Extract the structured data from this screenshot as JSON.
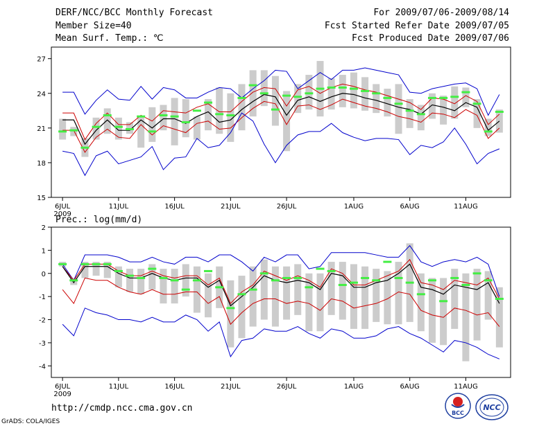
{
  "header": {
    "title": "DERF/NCC/BCC Monthly Forecast",
    "member_size": "Member Size=40",
    "variable": "Mean Surf. Temp.: ℃",
    "forecast_period": "For 2009/07/06-2009/08/14",
    "started_refer_date": "Fcst Started Refer Date 2009/07/05",
    "produced_date": "Fcst Produced Date 2009/07/06"
  },
  "footer": {
    "url": "http://cmdp.ncc.cma.gov.cn",
    "grads": "GrADS: COLA/IGES",
    "logo_bcc": "BCC",
    "logo_ncc": "NCC"
  },
  "colors": {
    "envelope": "#0000cc",
    "spread": "#cc0000",
    "mean": "#000000",
    "box": "#cccccc",
    "median": "#44ee44"
  },
  "chart_data": [
    {
      "type": "line",
      "title": "Mean Surf. Temp.: ℃",
      "x_tick_labels": [
        "6JUL",
        "11JUL",
        "16JUL",
        "21JUL",
        "26JUL",
        "1AUG",
        "6AUG",
        "11AUG"
      ],
      "x_tick_days": [
        1,
        6,
        11,
        16,
        21,
        27,
        32,
        37
      ],
      "x_year_label": "2009",
      "x_range": [
        0,
        41
      ],
      "ylim": [
        15,
        28
      ],
      "y_ticks": [
        15,
        18,
        21,
        24,
        27
      ],
      "days": [
        1,
        2,
        3,
        4,
        5,
        6,
        7,
        8,
        9,
        10,
        11,
        12,
        13,
        14,
        15,
        16,
        17,
        18,
        19,
        20,
        21,
        22,
        23,
        24,
        25,
        26,
        27,
        28,
        29,
        30,
        31,
        32,
        33,
        34,
        35,
        36,
        37,
        38,
        39,
        40
      ],
      "series": [
        {
          "name": "max",
          "values": [
            24.1,
            24.1,
            22.2,
            23.4,
            24.3,
            23.5,
            23.4,
            24.6,
            23.5,
            24.5,
            24.3,
            23.6,
            23.6,
            24.1,
            24.5,
            24.4,
            23.6,
            24.4,
            25.1,
            26.0,
            25.9,
            24.4,
            25.1,
            25.8,
            25.2,
            26.0,
            26.0,
            26.2,
            26.0,
            25.8,
            25.6,
            24.1,
            24.0,
            24.4,
            24.6,
            24.8,
            24.9,
            24.4,
            22.1,
            23.9
          ]
        },
        {
          "name": "p_high",
          "values": [
            22.3,
            22.3,
            20.0,
            21.4,
            22.3,
            21.3,
            21.3,
            22.1,
            21.6,
            22.5,
            22.4,
            22.3,
            22.8,
            23.1,
            22.4,
            22.4,
            23.3,
            24.1,
            24.5,
            24.4,
            22.9,
            24.3,
            24.6,
            24.0,
            24.5,
            24.8,
            24.6,
            24.3,
            24.1,
            23.8,
            23.5,
            23.2,
            22.6,
            23.6,
            23.5,
            23.1,
            23.8,
            23.3,
            21.3,
            22.2
          ]
        },
        {
          "name": "mean",
          "values": [
            21.7,
            21.7,
            19.6,
            20.8,
            21.7,
            20.8,
            20.8,
            21.7,
            21.0,
            21.8,
            21.8,
            21.4,
            22.0,
            22.4,
            21.5,
            21.7,
            22.6,
            23.3,
            23.9,
            23.7,
            22.1,
            23.4,
            23.7,
            23.3,
            23.7,
            24.0,
            23.9,
            23.6,
            23.4,
            23.1,
            22.8,
            22.6,
            22.2,
            23.0,
            22.8,
            22.5,
            23.2,
            22.8,
            20.8,
            21.6
          ]
        },
        {
          "name": "p_low",
          "values": [
            20.8,
            20.8,
            18.9,
            20.2,
            20.9,
            20.2,
            20.1,
            21.3,
            20.4,
            21.2,
            20.9,
            20.6,
            21.4,
            21.6,
            20.9,
            21.0,
            21.9,
            22.7,
            23.3,
            23.1,
            21.3,
            22.9,
            23.0,
            22.6,
            23.0,
            23.5,
            23.2,
            22.9,
            22.7,
            22.4,
            22.0,
            21.8,
            21.5,
            22.3,
            22.2,
            21.9,
            22.6,
            22.1,
            20.1,
            21.0
          ]
        },
        {
          "name": "min",
          "values": [
            19.0,
            18.8,
            16.9,
            18.6,
            19.0,
            17.9,
            18.2,
            18.5,
            19.4,
            17.4,
            18.4,
            18.5,
            20.1,
            19.3,
            19.5,
            20.6,
            22.3,
            21.6,
            19.6,
            18.0,
            19.5,
            20.4,
            20.7,
            20.7,
            21.4,
            20.6,
            20.2,
            19.9,
            20.1,
            20.1,
            20.0,
            18.7,
            19.5,
            19.3,
            19.8,
            21.0,
            19.6,
            17.9,
            18.8,
            19.2
          ]
        }
      ],
      "box_low": [
        20.0,
        20.3,
        18.5,
        20.0,
        20.5,
        20.0,
        20.5,
        19.3,
        19.8,
        20.8,
        19.5,
        20.2,
        20.0,
        20.8,
        20.5,
        19.8,
        20.8,
        22.0,
        22.9,
        21.2,
        19.0,
        22.3,
        22.6,
        22.0,
        22.6,
        22.8,
        22.7,
        22.5,
        22.3,
        22.0,
        20.5,
        21.0,
        20.8,
        21.8,
        21.3,
        21.8,
        22.8,
        21.0,
        20.3,
        20.6
      ],
      "box_high": [
        21.8,
        21.1,
        20.1,
        21.9,
        22.7,
        21.9,
        21.5,
        22.0,
        22.8,
        23.0,
        23.6,
        23.5,
        22.0,
        23.5,
        24.5,
        24.0,
        24.8,
        26.0,
        26.0,
        25.5,
        24.2,
        24.8,
        25.6,
        26.8,
        25.3,
        25.6,
        25.8,
        25.4,
        24.8,
        24.4,
        24.8,
        23.5,
        23.0,
        24.0,
        23.8,
        24.6,
        24.5,
        23.5,
        21.8,
        22.6
      ],
      "median": [
        20.7,
        20.8,
        19.3,
        21.1,
        22.1,
        21.1,
        20.9,
        22.0,
        20.7,
        22.1,
        22.0,
        21.5,
        22.5,
        23.2,
        22.2,
        22.1,
        23.6,
        24.7,
        24.0,
        22.6,
        23.8,
        23.7,
        24.0,
        24.4,
        24.5,
        24.5,
        24.4,
        24.2,
        24.0,
        23.6,
        23.1,
        22.5,
        22.2,
        23.6,
        23.6,
        23.7,
        24.1,
        23.1,
        20.7,
        22.4
      ]
    },
    {
      "type": "line",
      "title": "Prec.: log(mm/d)",
      "x_tick_labels": [
        "6JUL",
        "11JUL",
        "16JUL",
        "21JUL",
        "26JUL",
        "1AUG",
        "6AUG",
        "11AUG"
      ],
      "x_tick_days": [
        1,
        6,
        11,
        16,
        21,
        27,
        32,
        37
      ],
      "x_year_label": "2009",
      "x_range": [
        0,
        41
      ],
      "ylim": [
        -4.5,
        2
      ],
      "y_ticks": [
        2,
        1,
        0,
        -1,
        -2,
        -3,
        -4
      ],
      "days": [
        1,
        2,
        3,
        4,
        5,
        6,
        7,
        8,
        9,
        10,
        11,
        12,
        13,
        14,
        15,
        16,
        17,
        18,
        19,
        20,
        21,
        22,
        23,
        24,
        25,
        26,
        27,
        28,
        29,
        30,
        31,
        32,
        33,
        34,
        35,
        36,
        37,
        38,
        39,
        40
      ],
      "series": [
        {
          "name": "max",
          "values": [
            0.4,
            -0.3,
            0.8,
            0.8,
            0.8,
            0.7,
            0.5,
            0.5,
            0.7,
            0.5,
            0.4,
            0.7,
            0.7,
            0.5,
            0.8,
            0.8,
            0.5,
            0.1,
            0.7,
            0.5,
            0.8,
            0.8,
            0.2,
            0.3,
            0.9,
            0.9,
            0.9,
            0.9,
            0.8,
            0.7,
            0.7,
            1.2,
            0.5,
            0.3,
            0.5,
            0.6,
            0.5,
            0.7,
            0.4,
            -1.0
          ]
        },
        {
          "name": "p_high",
          "values": [
            0.3,
            -0.3,
            0.4,
            0.4,
            0.4,
            0.1,
            -0.1,
            -0.1,
            0.1,
            -0.1,
            -0.2,
            -0.1,
            -0.1,
            -0.5,
            -0.2,
            -1.3,
            -0.8,
            -0.5,
            0.1,
            -0.1,
            -0.3,
            -0.1,
            -0.3,
            -0.6,
            0.2,
            0.0,
            -0.5,
            -0.5,
            -0.3,
            -0.1,
            0.1,
            0.6,
            -0.4,
            -0.5,
            -0.7,
            -0.3,
            -0.4,
            -0.5,
            -0.2,
            -1.1
          ]
        },
        {
          "name": "mean",
          "values": [
            0.3,
            -0.4,
            0.3,
            0.3,
            0.3,
            0.0,
            -0.2,
            -0.2,
            0.0,
            -0.2,
            -0.3,
            -0.2,
            -0.2,
            -0.6,
            -0.3,
            -1.4,
            -1.0,
            -0.6,
            -0.1,
            -0.3,
            -0.4,
            -0.3,
            -0.4,
            -0.7,
            0.0,
            -0.1,
            -0.6,
            -0.6,
            -0.4,
            -0.3,
            0.0,
            0.4,
            -0.6,
            -0.7,
            -0.9,
            -0.5,
            -0.6,
            -0.7,
            -0.4,
            -1.3
          ]
        },
        {
          "name": "p_low",
          "values": [
            -0.7,
            -1.3,
            -0.2,
            -0.3,
            -0.3,
            -0.6,
            -0.8,
            -0.9,
            -0.7,
            -0.9,
            -0.9,
            -0.8,
            -0.8,
            -1.3,
            -1.0,
            -2.2,
            -1.7,
            -1.3,
            -1.1,
            -1.1,
            -1.3,
            -1.2,
            -1.3,
            -1.6,
            -1.1,
            -1.2,
            -1.5,
            -1.4,
            -1.3,
            -1.1,
            -0.8,
            -0.9,
            -1.6,
            -1.8,
            -1.9,
            -1.5,
            -1.6,
            -1.8,
            -1.7,
            -2.3
          ]
        },
        {
          "name": "min",
          "values": [
            -2.2,
            -2.7,
            -1.5,
            -1.7,
            -1.8,
            -2.0,
            -2.0,
            -2.1,
            -1.9,
            -2.1,
            -2.1,
            -1.8,
            -2.0,
            -2.5,
            -2.1,
            -3.6,
            -2.9,
            -2.8,
            -2.4,
            -2.5,
            -2.5,
            -2.3,
            -2.6,
            -2.8,
            -2.4,
            -2.5,
            -2.8,
            -2.8,
            -2.7,
            -2.4,
            -2.3,
            -2.6,
            -2.8,
            -3.1,
            -3.4,
            -2.9,
            -3.0,
            -3.2,
            -3.5,
            -3.7
          ]
        }
      ],
      "box_low": [
        0.3,
        -0.5,
        -0.2,
        -0.1,
        -0.2,
        -0.6,
        -0.8,
        -0.9,
        -0.7,
        -1.3,
        -1.3,
        -1.0,
        -1.7,
        -1.9,
        -1.5,
        -3.2,
        -2.8,
        -2.3,
        -2.0,
        -2.3,
        -2.0,
        -1.8,
        -2.5,
        -2.5,
        -1.8,
        -2.0,
        -2.4,
        -2.4,
        -2.1,
        -2.2,
        -2.2,
        -2.1,
        -2.5,
        -3.0,
        -3.1,
        -2.4,
        -3.8,
        -2.9,
        -2.0,
        -3.2
      ],
      "box_high": [
        0.5,
        -0.2,
        0.5,
        0.5,
        0.5,
        0.3,
        0.2,
        0.2,
        0.4,
        0.2,
        0.2,
        0.4,
        0.3,
        0.0,
        0.3,
        -0.3,
        -0.1,
        0.3,
        0.6,
        0.3,
        0.3,
        0.4,
        0.0,
        0.0,
        0.5,
        0.5,
        0.4,
        0.3,
        0.2,
        0.1,
        0.5,
        1.3,
        0.0,
        -0.2,
        -0.2,
        0.2,
        0.0,
        0.2,
        0.1,
        -0.6
      ],
      "median": [
        0.4,
        -0.3,
        0.4,
        0.4,
        0.4,
        0.1,
        -0.1,
        -0.2,
        0.2,
        -0.2,
        -0.3,
        -0.7,
        -0.3,
        0.1,
        -0.6,
        -1.5,
        -0.9,
        -0.7,
        0.0,
        -0.3,
        -0.2,
        -0.2,
        -0.6,
        0.2,
        0.1,
        -0.5,
        -0.4,
        -0.2,
        -0.3,
        0.5,
        -0.2,
        -0.4,
        -0.9,
        -0.3,
        -1.2,
        -0.2,
        -0.5,
        0.0,
        -0.3,
        -1.1
      ]
    }
  ]
}
